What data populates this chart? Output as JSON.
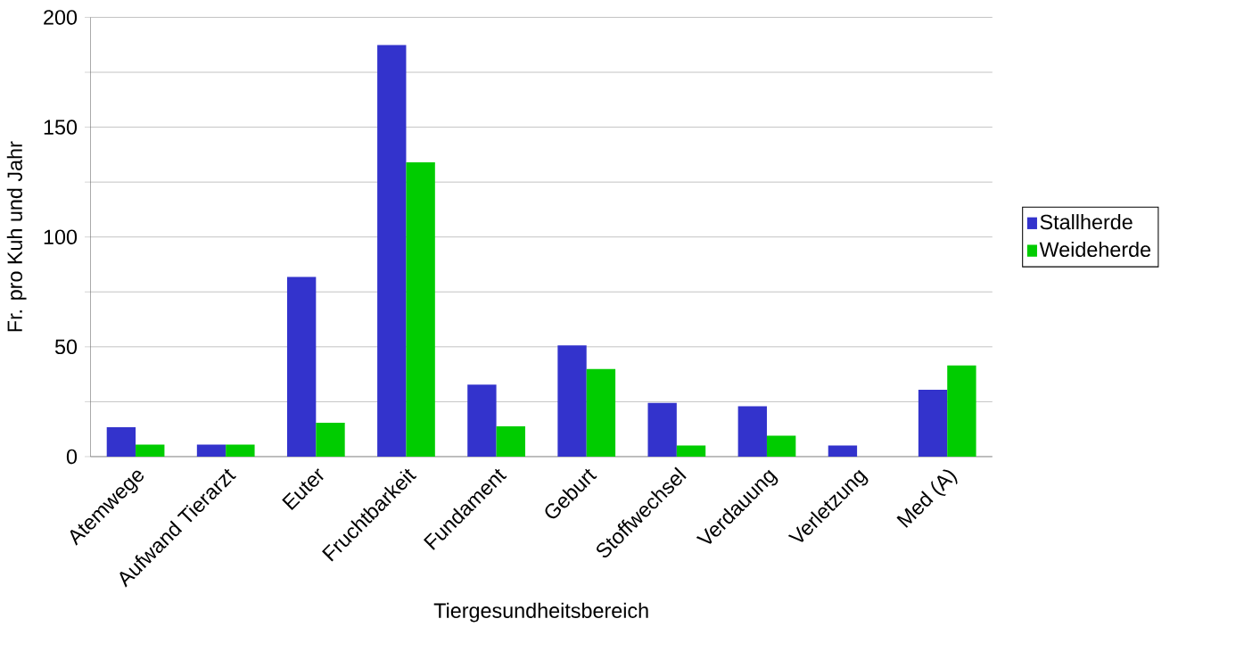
{
  "chart_data": {
    "type": "bar",
    "xlabel": "Tiergesundheitsbereich",
    "ylabel": "Fr. pro Kuh und Jahr",
    "categories": [
      "Atemwege",
      "Aufwand Tierarzt",
      "Euter",
      "Fruchtbarkeit",
      "Fundament",
      "Geburt",
      "Stoffwechsel",
      "Verdauung",
      "Verletzung",
      "Med (A)"
    ],
    "series": [
      {
        "name": "Stallherde",
        "color": "#3333cc",
        "values": [
          13.4,
          5.5,
          81.8,
          187.4,
          32.8,
          50.6,
          24.5,
          22.9,
          5.1,
          30.4
        ]
      },
      {
        "name": "Weideherde",
        "color": "#00cc00",
        "values": [
          5.5,
          5.5,
          15.4,
          134,
          13.8,
          39.9,
          5.1,
          9.5,
          0,
          41.5
        ]
      }
    ],
    "ylim": [
      0,
      200
    ],
    "yticks": [
      0,
      {
        "value": 25,
        "label": null
      },
      50,
      {
        "value": 75,
        "label": null
      },
      100,
      {
        "value": 125,
        "label": null
      },
      150,
      {
        "value": 175,
        "label": null
      },
      200
    ],
    "grid": "y",
    "legend": "right"
  }
}
